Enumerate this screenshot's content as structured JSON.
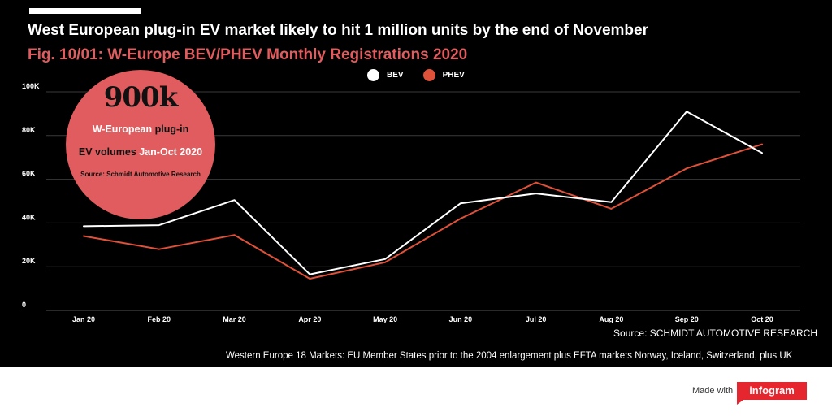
{
  "header": {
    "title": "West European plug-in EV market likely to hit 1 million units by the end of November",
    "subtitle": "Fig. 10/01: W-Europe BEV/PHEV Monthly Registrations 2020"
  },
  "callout": {
    "value": "900k",
    "line1_white": "W-European",
    "line1_dark": "plug-in",
    "line2_dark": "EV volumes",
    "line2_white": "Jan-Oct 2020",
    "source": "Source: Schmidt Automotive Research"
  },
  "source_note": "Source: SCHMIDT AUTOMOTIVE RESEARCH",
  "footnote": "Western Europe 18 Markets: EU Member States prior to the 2004 enlargement plus EFTA markets Norway, Iceland, Switzerland, plus UK",
  "branding": {
    "made_with": "Made with",
    "brand": "infogram"
  },
  "colors": {
    "background": "#000000",
    "bev": "#ffffff",
    "phev": "#e0513a",
    "accent": "#e05c5e",
    "brand": "#e5262f"
  },
  "chart_data": {
    "type": "line",
    "categories": [
      "Jan 20",
      "Feb 20",
      "Mar 20",
      "Apr 20",
      "May 20",
      "Jun 20",
      "Jul 20",
      "Aug 20",
      "Sep 20",
      "Oct 20"
    ],
    "series": [
      {
        "name": "BEV",
        "values": [
          38500,
          39000,
          50500,
          16500,
          23500,
          49000,
          53500,
          49500,
          91000,
          72000
        ]
      },
      {
        "name": "PHEV",
        "values": [
          34000,
          28000,
          34500,
          14500,
          22000,
          42000,
          58500,
          46500,
          65000,
          76000
        ]
      }
    ],
    "yticks": [
      "0",
      "20K",
      "40K",
      "60K",
      "80K",
      "100K"
    ],
    "ylim": [
      0,
      100000
    ],
    "grid": true,
    "legend_position": "top-center"
  }
}
